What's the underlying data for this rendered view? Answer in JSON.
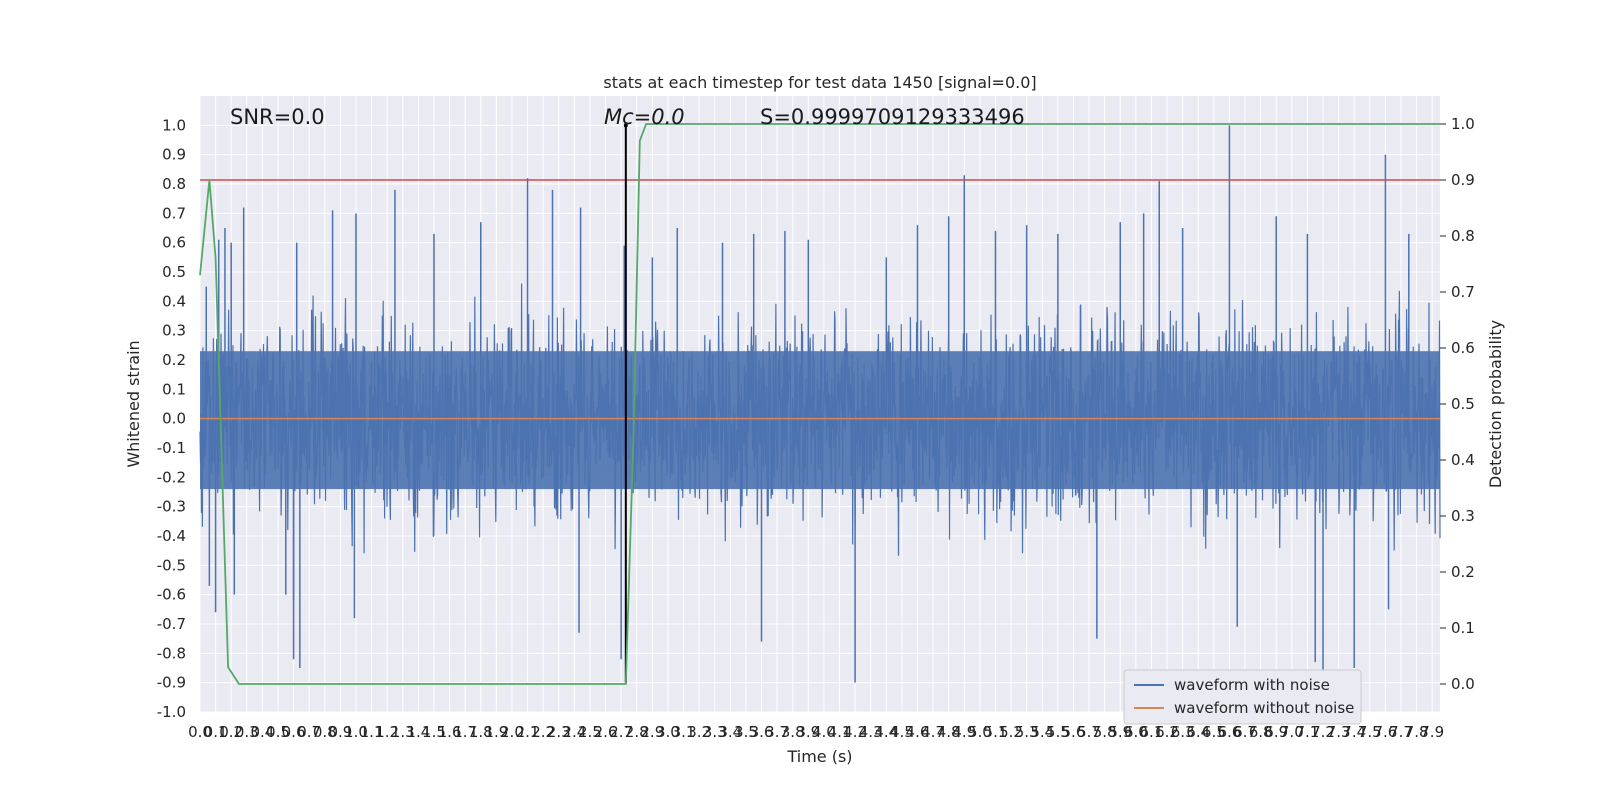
{
  "chart_data": {
    "type": "line",
    "title": "stats at each timestep for test data 1450 [signal=0.0]",
    "xlabel": "Time (s)",
    "ylabel": "Whitened strain",
    "ylabel_right": "Detection probability",
    "xlim": [
      0,
      7.95
    ],
    "ylim": [
      -1.0,
      1.1
    ],
    "ylim_right": [
      -0.05,
      1.05
    ],
    "x_ticks": [
      "0.0",
      "0.1",
      "0.2",
      "0.3",
      "0.4",
      "0.5",
      "0.6",
      "0.7",
      "0.8",
      "0.9",
      "1.0",
      "1.1",
      "1.2",
      "1.3",
      "1.4",
      "1.5",
      "1.6",
      "1.7",
      "1.8",
      "1.9",
      "2.0",
      "2.1",
      "2.2",
      "2.3",
      "2.4",
      "2.5",
      "2.6",
      "2.7",
      "2.8",
      "2.9",
      "3.0",
      "3.1",
      "3.2",
      "3.3",
      "3.4",
      "3.5",
      "3.6",
      "3.7",
      "3.8",
      "3.9",
      "4.0",
      "4.1",
      "4.2",
      "4.3",
      "4.4",
      "4.5",
      "4.6",
      "4.7",
      "4.8",
      "4.9",
      "5.0",
      "5.1",
      "5.2",
      "5.3",
      "5.4",
      "5.5",
      "5.6",
      "5.7",
      "5.8",
      "5.9",
      "6.0",
      "6.1",
      "6.2",
      "6.3",
      "6.4",
      "6.5",
      "6.6",
      "6.7",
      "6.8",
      "6.9",
      "7.0",
      "7.1",
      "7.2",
      "7.3",
      "7.4",
      "7.5",
      "7.6",
      "7.7",
      "7.8",
      "7.9"
    ],
    "y_ticks": [
      "-1.0",
      "-0.9",
      "-0.8",
      "-0.7",
      "-0.6",
      "-0.5",
      "-0.4",
      "-0.3",
      "-0.2",
      "-0.1",
      "0.0",
      "0.1",
      "0.2",
      "0.3",
      "0.4",
      "0.5",
      "0.6",
      "0.7",
      "0.8",
      "0.9",
      "1.0"
    ],
    "y_ticks_right": [
      "0.0",
      "0.1",
      "0.2",
      "0.3",
      "0.4",
      "0.5",
      "0.6",
      "0.7",
      "0.8",
      "0.9",
      "1.0"
    ],
    "annotations": {
      "snr": "SNR=0.0",
      "mc": "Mᴄ=0.0",
      "s": "S=0.9999709129333496"
    },
    "threshold_right": 0.9,
    "marker_x": 2.73,
    "series": [
      {
        "name": "waveform with noise",
        "color": "#4c72b0",
        "envelope_upper": 0.45,
        "envelope_lower": -0.45,
        "spikes": [
          [
            0.04,
            0.45
          ],
          [
            0.06,
            -0.57
          ],
          [
            0.1,
            -0.66
          ],
          [
            0.12,
            0.61
          ],
          [
            0.16,
            0.65
          ],
          [
            0.2,
            0.6
          ],
          [
            0.22,
            -0.6
          ],
          [
            0.28,
            0.72
          ],
          [
            0.55,
            -0.6
          ],
          [
            0.6,
            -0.62
          ],
          [
            0.62,
            0.6
          ],
          [
            0.6,
            -0.82
          ],
          [
            0.64,
            -0.85
          ],
          [
            0.85,
            0.71
          ],
          [
            0.99,
            -0.68
          ],
          [
            1.0,
            0.7
          ],
          [
            1.25,
            0.78
          ],
          [
            1.5,
            0.63
          ],
          [
            1.8,
            0.67
          ],
          [
            2.1,
            0.82
          ],
          [
            2.26,
            0.78
          ],
          [
            2.44,
            0.72
          ],
          [
            2.43,
            -0.73
          ],
          [
            2.7,
            -0.82
          ],
          [
            2.72,
            0.59
          ],
          [
            2.9,
            0.55
          ],
          [
            3.06,
            0.65
          ],
          [
            3.35,
            0.6
          ],
          [
            3.55,
            0.63
          ],
          [
            3.6,
            -0.76
          ],
          [
            3.75,
            0.64
          ],
          [
            3.9,
            0.61
          ],
          [
            4.2,
            -0.9
          ],
          [
            4.4,
            0.55
          ],
          [
            4.6,
            0.66
          ],
          [
            4.8,
            0.69
          ],
          [
            4.9,
            0.83
          ],
          [
            5.1,
            0.64
          ],
          [
            5.3,
            0.66
          ],
          [
            5.5,
            0.63
          ],
          [
            5.75,
            -0.75
          ],
          [
            5.9,
            0.67
          ],
          [
            6.05,
            0.7
          ],
          [
            6.15,
            0.81
          ],
          [
            6.3,
            0.65
          ],
          [
            6.6,
            1.0
          ],
          [
            6.65,
            -0.71
          ],
          [
            6.9,
            0.69
          ],
          [
            7.1,
            0.63
          ],
          [
            7.15,
            -0.83
          ],
          [
            7.2,
            -0.88
          ],
          [
            7.4,
            -0.85
          ],
          [
            7.6,
            0.9
          ],
          [
            7.62,
            -0.65
          ],
          [
            7.75,
            0.63
          ]
        ]
      },
      {
        "name": "waveform without noise",
        "color": "#dd8452",
        "value": 0.0
      },
      {
        "name": "detection probability",
        "color": "#55a868",
        "x": [
          0,
          0.06,
          0.1,
          0.18,
          0.25,
          2.73,
          2.78,
          2.82,
          2.86,
          7.95
        ],
        "y": [
          0.73,
          0.9,
          0.76,
          0.03,
          0.0,
          0.0,
          0.45,
          0.97,
          1.0,
          1.0
        ]
      },
      {
        "name": "threshold",
        "color": "#c44e52",
        "value": 0.9
      },
      {
        "name": "marker",
        "color": "#000000"
      }
    ],
    "legend_location": "lower right",
    "grid": true
  }
}
